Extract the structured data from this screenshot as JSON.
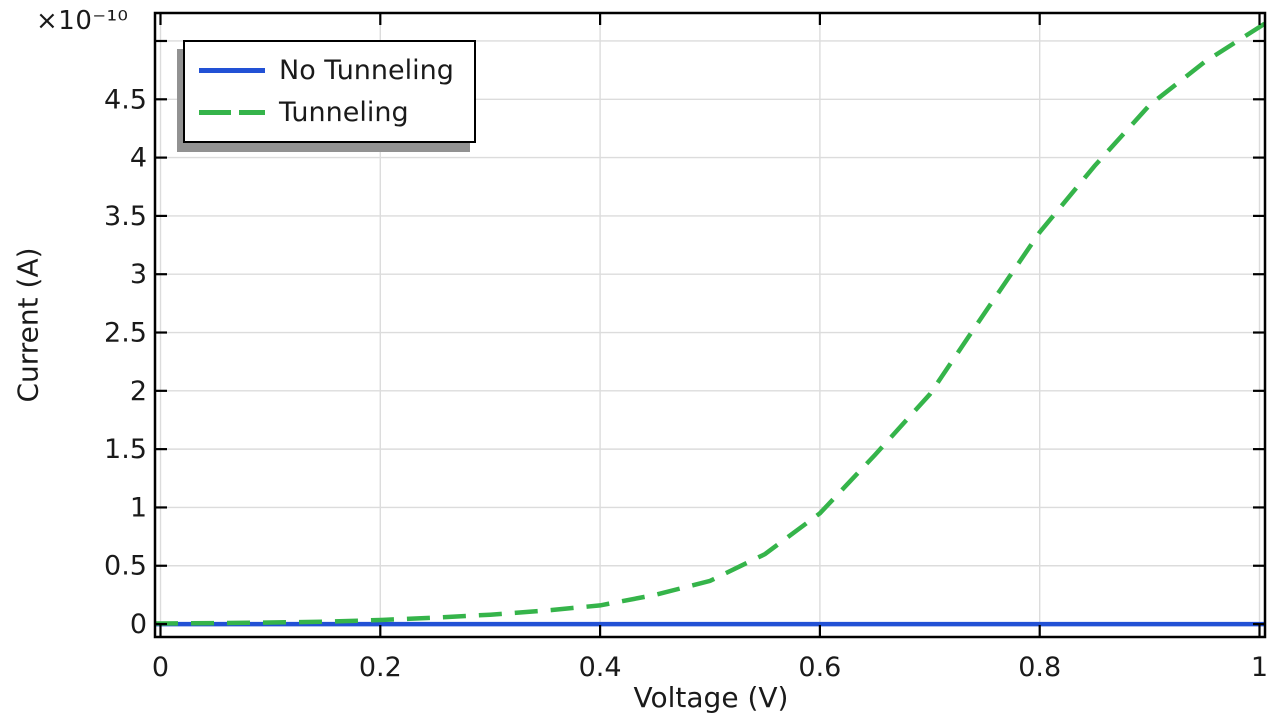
{
  "chart_data": {
    "type": "line",
    "xlabel": "Voltage (V)",
    "ylabel": "Current (A)",
    "y_axis_multiplier": "×10⁻¹⁰",
    "xlim": [
      -0.005,
      1.005
    ],
    "ylim": [
      -0.111,
      5.24
    ],
    "xticks": [
      0,
      0.2,
      0.4,
      0.6,
      0.8,
      1
    ],
    "xtick_labels": [
      "0",
      "0.2",
      "0.4",
      "0.6",
      "0.8",
      "1"
    ],
    "yticks": [
      0,
      0.5,
      1,
      1.5,
      2,
      2.5,
      3,
      3.5,
      4,
      4.5,
      5
    ],
    "ytick_labels": [
      "0",
      "0.5",
      "1",
      "1.5",
      "2",
      "2.5",
      "3",
      "3.5",
      "4",
      "4.5",
      ""
    ],
    "grid": true,
    "legend_position": "top-left",
    "x": [
      0,
      0.05,
      0.1,
      0.15,
      0.2,
      0.25,
      0.3,
      0.35,
      0.4,
      0.45,
      0.5,
      0.55,
      0.6,
      0.65,
      0.7,
      0.75,
      0.8,
      0.85,
      0.9,
      0.95,
      1.0
    ],
    "series": [
      {
        "name": "No Tunneling",
        "color": "#2251d5",
        "style": "solid",
        "values": [
          0,
          0,
          0,
          0,
          0,
          0,
          0,
          0,
          0,
          0,
          0,
          0,
          0,
          0,
          0,
          0,
          0,
          0,
          0,
          0,
          0
        ]
      },
      {
        "name": "Tunneling",
        "color": "#35b44a",
        "style": "dashed",
        "values": [
          0.005,
          0.008,
          0.013,
          0.02,
          0.035,
          0.055,
          0.08,
          0.115,
          0.16,
          0.25,
          0.37,
          0.6,
          0.95,
          1.45,
          1.97,
          2.67,
          3.36,
          3.93,
          4.45,
          4.82,
          5.12
        ]
      }
    ],
    "colors": {
      "grid": "#dcdcdc",
      "frame": "#000000",
      "text": "#1a1a1a",
      "legend_shadow": "#929292"
    }
  }
}
